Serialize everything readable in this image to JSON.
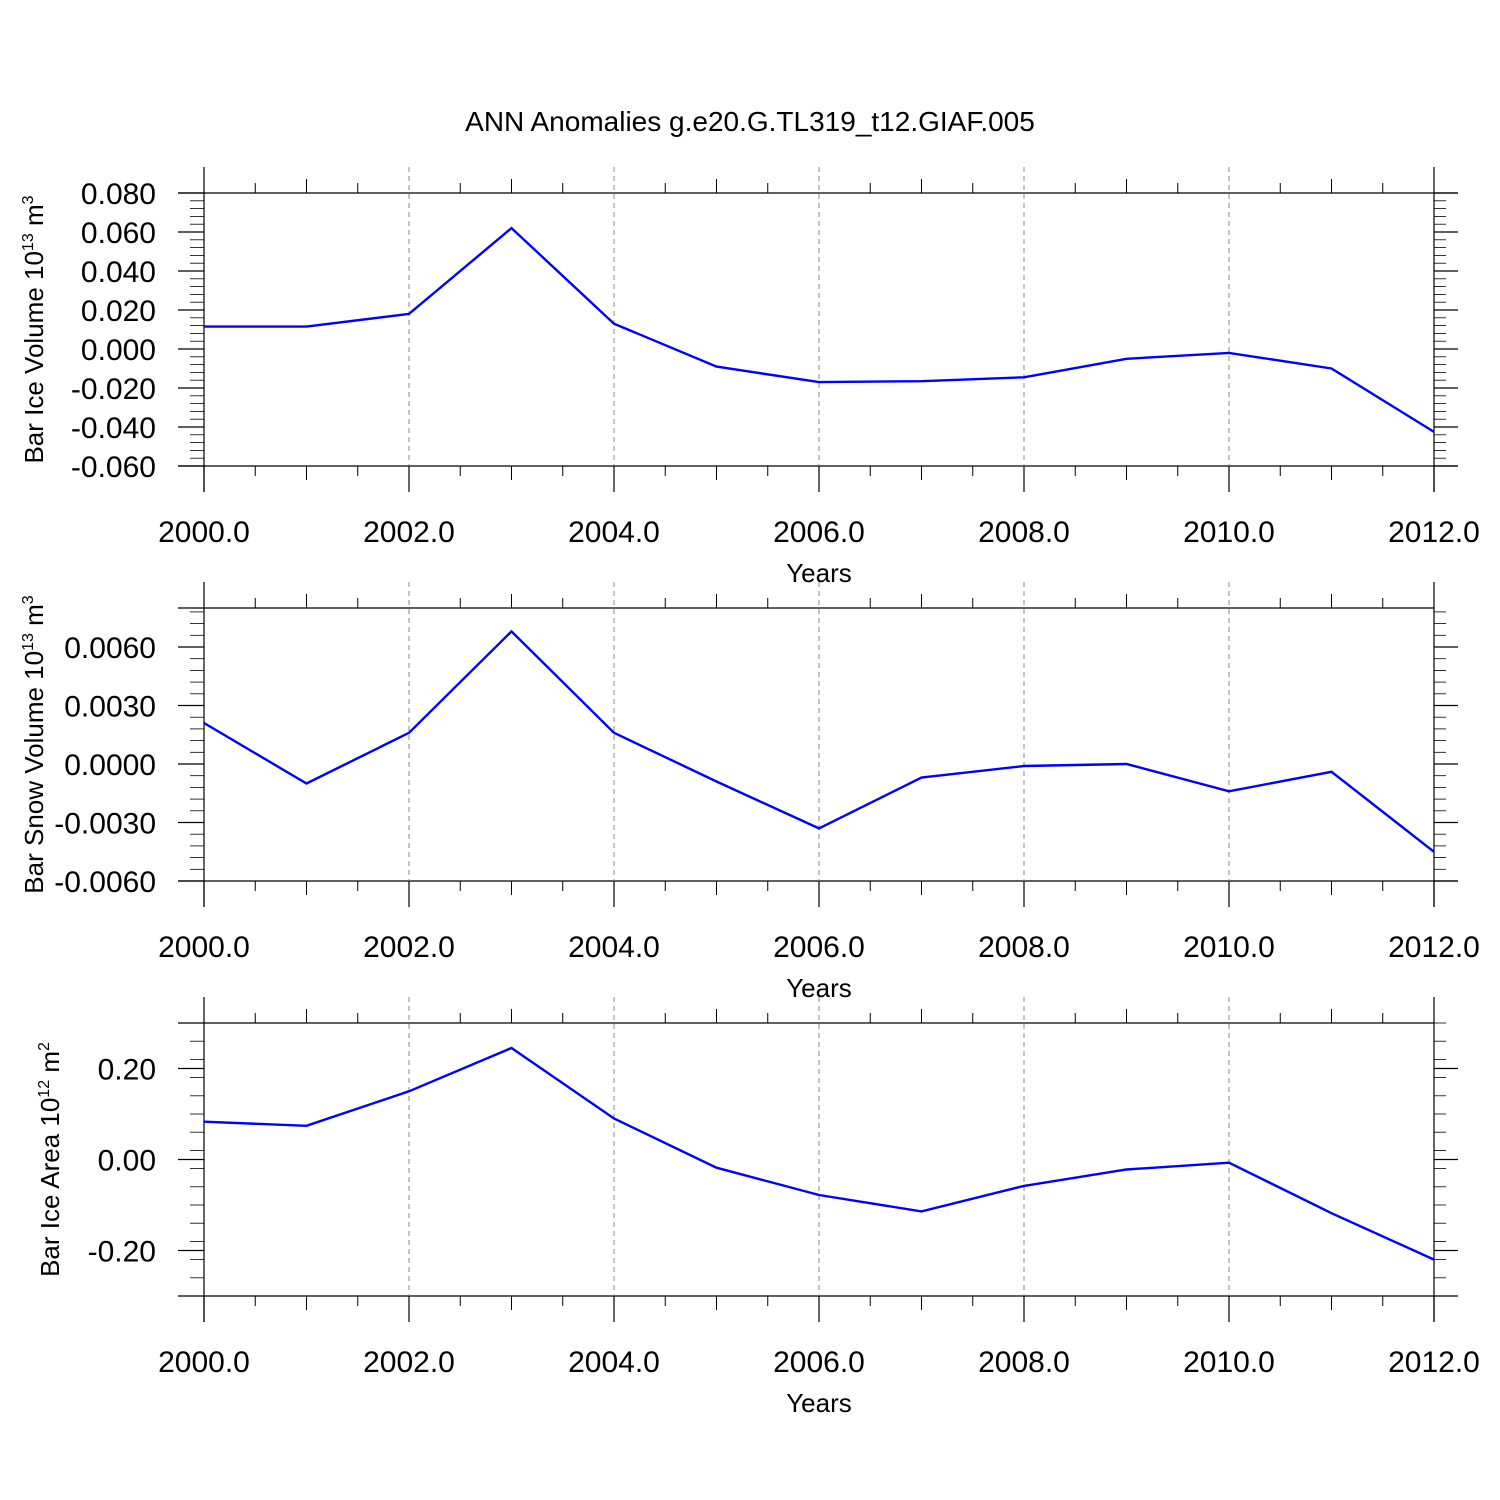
{
  "title": "ANN Anomalies g.e20.G.TL319_t12.GIAF.005",
  "colors": {
    "series": "#0000ff",
    "axis": "#000000",
    "grid": "#888888"
  },
  "chart_data": [
    {
      "type": "line",
      "ylabel": {
        "main": "Bar Ice Volume 10",
        "sup": "13",
        "after": " m",
        "sup2": "3"
      },
      "xlabel": "Years",
      "xlim": [
        2000,
        2012
      ],
      "ylim": [
        -0.06,
        0.08
      ],
      "x_ticks": [
        "2000.0",
        "2002.0",
        "2004.0",
        "2006.0",
        "2008.0",
        "2010.0",
        "2012.0"
      ],
      "y_ticks": [
        "0.080",
        "0.060",
        "0.040",
        "0.020",
        "0.000",
        "-0.020",
        "-0.040",
        "-0.060"
      ],
      "x": [
        2000,
        2001,
        2002,
        2003,
        2004,
        2005,
        2006,
        2007,
        2008,
        2009,
        2010,
        2011,
        2012
      ],
      "values": [
        0.0115,
        0.0115,
        0.018,
        0.062,
        0.013,
        -0.009,
        -0.017,
        -0.0165,
        -0.0145,
        -0.005,
        -0.002,
        -0.01,
        -0.0425
      ]
    },
    {
      "type": "line",
      "ylabel": {
        "main": "Bar Snow Volume 10",
        "sup": "13",
        "after": " m",
        "sup2": "3"
      },
      "xlabel": "Years",
      "xlim": [
        2000,
        2012
      ],
      "ylim": [
        -0.006,
        0.008
      ],
      "x_ticks": [
        "2000.0",
        "2002.0",
        "2004.0",
        "2006.0",
        "2008.0",
        "2010.0",
        "2012.0"
      ],
      "y_ticks": [
        "0.0060",
        "0.0030",
        "0.0000",
        "-0.0030",
        "-0.0060"
      ],
      "x": [
        2000,
        2001,
        2002,
        2003,
        2004,
        2005,
        2006,
        2007,
        2008,
        2009,
        2010,
        2011,
        2012
      ],
      "values": [
        0.0021,
        -0.001,
        0.0016,
        0.0068,
        0.0016,
        -0.0009,
        -0.0033,
        -0.0007,
        -0.0001,
        0.0,
        -0.0014,
        -0.0004,
        -0.0045
      ]
    },
    {
      "type": "line",
      "ylabel": {
        "main": "Bar Ice Area 10",
        "sup": "12",
        "after": " m",
        "sup2": "2"
      },
      "xlabel": "Years",
      "xlim": [
        2000,
        2012
      ],
      "ylim": [
        -0.3,
        0.3
      ],
      "x_ticks": [
        "2000.0",
        "2002.0",
        "2004.0",
        "2006.0",
        "2008.0",
        "2010.0",
        "2012.0"
      ],
      "y_ticks": [
        "0.20",
        "0.00",
        "-0.20"
      ],
      "x": [
        2000,
        2001,
        2002,
        2003,
        2004,
        2005,
        2006,
        2007,
        2008,
        2009,
        2010,
        2011,
        2012
      ],
      "values": [
        0.083,
        0.074,
        0.15,
        0.245,
        0.09,
        -0.018,
        -0.078,
        -0.114,
        -0.058,
        -0.022,
        -0.007,
        -0.118,
        -0.22
      ]
    }
  ]
}
